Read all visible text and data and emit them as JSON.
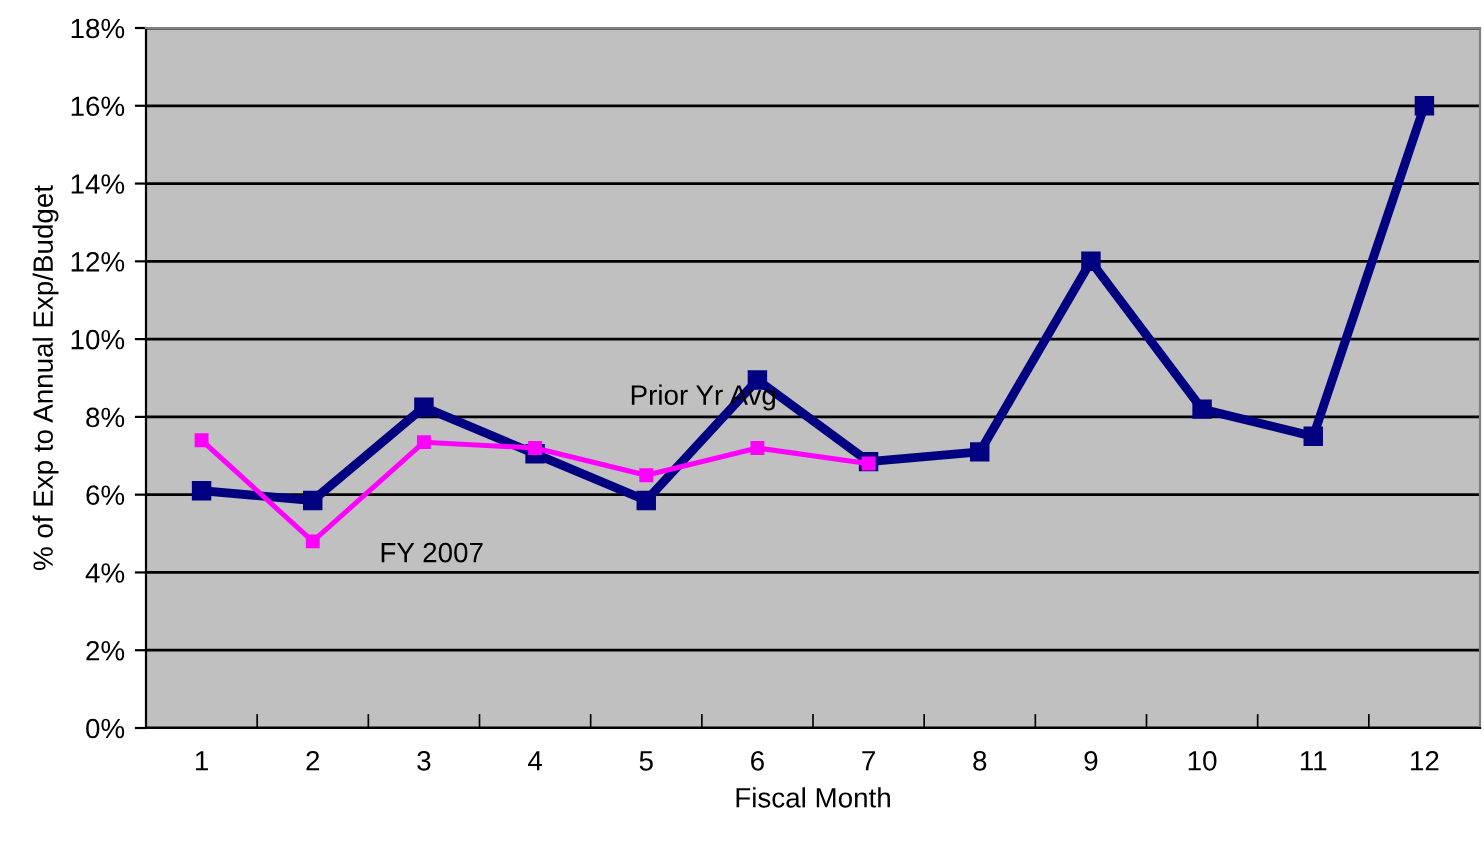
{
  "chart_data": {
    "type": "line",
    "xlabel": "Fiscal Month",
    "ylabel": "% of Exp to Annual Exp/Budget",
    "categories": [
      "1",
      "2",
      "3",
      "4",
      "5",
      "6",
      "7",
      "8",
      "9",
      "10",
      "11",
      "12"
    ],
    "series": [
      {
        "name": "Prior Yr Avg",
        "color": "#000080",
        "values": [
          6.1,
          5.85,
          8.25,
          7.05,
          5.85,
          8.95,
          6.85,
          7.1,
          12.0,
          8.2,
          7.5,
          16.0
        ]
      },
      {
        "name": "FY 2007",
        "color": "#ff00ff",
        "values": [
          7.4,
          4.8,
          7.35,
          7.2,
          6.5,
          7.2,
          6.8,
          null,
          null,
          null,
          null,
          null
        ]
      }
    ],
    "ylim": [
      0,
      18
    ],
    "yticks": [
      {
        "value": 0,
        "label": "0%"
      },
      {
        "value": 2,
        "label": "2%"
      },
      {
        "value": 4,
        "label": "4%"
      },
      {
        "value": 6,
        "label": "6%"
      },
      {
        "value": 8,
        "label": "8%"
      },
      {
        "value": 10,
        "label": "10%"
      },
      {
        "value": 12,
        "label": "12%"
      },
      {
        "value": 14,
        "label": "14%"
      },
      {
        "value": 16,
        "label": "16%"
      },
      {
        "value": 18,
        "label": "18%"
      }
    ],
    "grid": "y",
    "legend": false,
    "marker": "square",
    "line_style": "solid"
  }
}
